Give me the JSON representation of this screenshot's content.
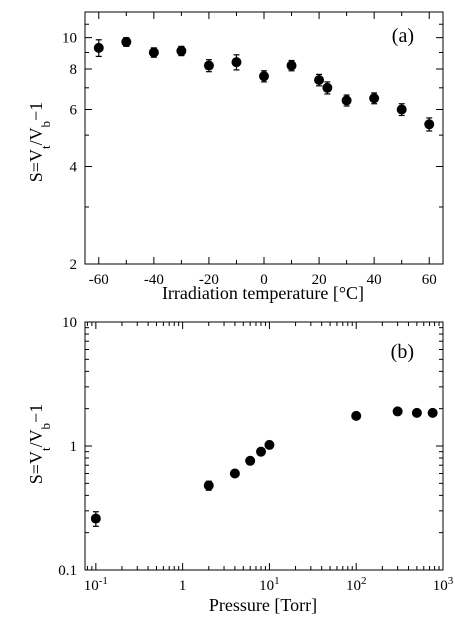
{
  "chart_data": [
    {
      "type": "scatter",
      "panel_label": "(a)",
      "xlabel": "Irradiation temperature [°C]",
      "ylabel_main": "S=V",
      "ylabel_sub1": "t",
      "ylabel_mid": "/V",
      "ylabel_sub2": "b",
      "ylabel_tail": "−1",
      "xlim": [
        -65,
        65
      ],
      "ylim": [
        2,
        12
      ],
      "yscale": "log",
      "grid": false,
      "x_ticks": [
        -60,
        -40,
        -20,
        0,
        20,
        40,
        60
      ],
      "x_tick_labels": [
        "-60",
        "-40",
        "-20",
        "0",
        "20",
        "40",
        "60"
      ],
      "y_ticks": [
        2,
        4,
        6,
        8,
        10
      ],
      "y_tick_labels": [
        "2",
        "4",
        "6",
        "8",
        "10"
      ],
      "x": [
        -60,
        -50,
        -40,
        -30,
        -20,
        -10,
        0,
        10,
        20,
        23,
        30,
        40,
        50,
        60
      ],
      "y": [
        9.3,
        9.7,
        9.0,
        9.1,
        8.2,
        8.4,
        7.6,
        8.2,
        7.4,
        7.0,
        6.4,
        6.5,
        6.0,
        5.4
      ],
      "yerr": [
        0.55,
        0.3,
        0.3,
        0.3,
        0.35,
        0.45,
        0.3,
        0.3,
        0.3,
        0.3,
        0.25,
        0.25,
        0.25,
        0.25
      ]
    },
    {
      "type": "scatter",
      "panel_label": "(b)",
      "xlabel": "Pressure [Torr]",
      "ylabel_main": "S=V",
      "ylabel_sub1": "t",
      "ylabel_mid": "/V",
      "ylabel_sub2": "b",
      "ylabel_tail": "−1",
      "xlim": [
        0.075,
        1000
      ],
      "ylim": [
        0.1,
        10
      ],
      "xscale": "log",
      "yscale": "log",
      "grid": false,
      "x_ticks": [
        0.1,
        1,
        10,
        100,
        1000
      ],
      "x_tick_base": "10",
      "x_tick_exps": [
        "-1",
        "",
        "1",
        "2",
        "3"
      ],
      "x_tick_plain": [
        "",
        "1",
        "",
        "",
        ""
      ],
      "y_ticks": [
        0.1,
        1,
        10
      ],
      "y_tick_labels": [
        "0.1",
        "1",
        "10"
      ],
      "x": [
        0.1,
        2,
        4,
        6,
        8,
        10,
        100,
        300,
        500,
        760
      ],
      "y": [
        0.26,
        0.48,
        0.6,
        0.76,
        0.9,
        1.02,
        1.75,
        1.9,
        1.85,
        1.85
      ],
      "yerr": [
        0.035,
        0.04,
        0.03,
        0.03,
        0.03,
        0.03,
        0.06,
        0.05,
        0.05,
        0.05
      ]
    }
  ]
}
